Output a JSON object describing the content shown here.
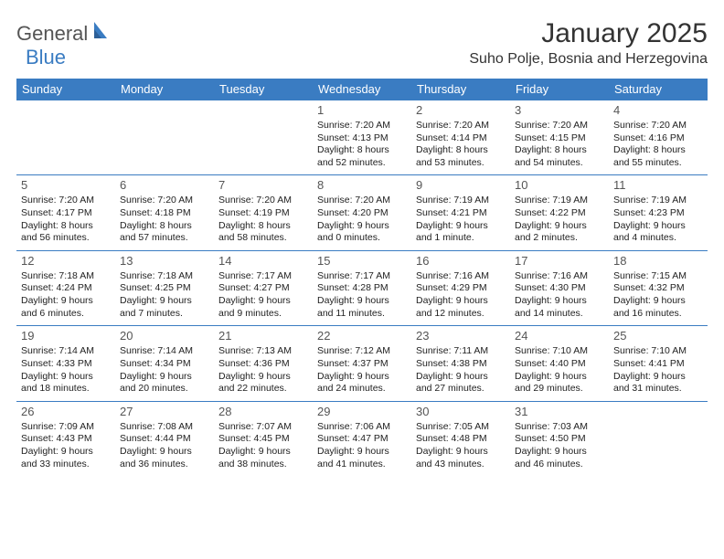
{
  "logo": {
    "part1": "General",
    "part2": "Blue"
  },
  "title": {
    "month": "January 2025",
    "location": "Suho Polje, Bosnia and Herzegovina"
  },
  "columns": [
    "Sunday",
    "Monday",
    "Tuesday",
    "Wednesday",
    "Thursday",
    "Friday",
    "Saturday"
  ],
  "colors": {
    "header_bg": "#3a7cc2",
    "header_fg": "#ffffff",
    "rule": "#3a7cc2",
    "text": "#222222",
    "daynum": "#555555",
    "logo_gray": "#555555",
    "logo_blue": "#3a7cc2",
    "background": "#ffffff"
  },
  "weeks": [
    [
      null,
      null,
      null,
      {
        "n": "1",
        "sr": "7:20 AM",
        "ss": "4:13 PM",
        "dl": "8 hours and 52 minutes."
      },
      {
        "n": "2",
        "sr": "7:20 AM",
        "ss": "4:14 PM",
        "dl": "8 hours and 53 minutes."
      },
      {
        "n": "3",
        "sr": "7:20 AM",
        "ss": "4:15 PM",
        "dl": "8 hours and 54 minutes."
      },
      {
        "n": "4",
        "sr": "7:20 AM",
        "ss": "4:16 PM",
        "dl": "8 hours and 55 minutes."
      }
    ],
    [
      {
        "n": "5",
        "sr": "7:20 AM",
        "ss": "4:17 PM",
        "dl": "8 hours and 56 minutes."
      },
      {
        "n": "6",
        "sr": "7:20 AM",
        "ss": "4:18 PM",
        "dl": "8 hours and 57 minutes."
      },
      {
        "n": "7",
        "sr": "7:20 AM",
        "ss": "4:19 PM",
        "dl": "8 hours and 58 minutes."
      },
      {
        "n": "8",
        "sr": "7:20 AM",
        "ss": "4:20 PM",
        "dl": "9 hours and 0 minutes."
      },
      {
        "n": "9",
        "sr": "7:19 AM",
        "ss": "4:21 PM",
        "dl": "9 hours and 1 minute."
      },
      {
        "n": "10",
        "sr": "7:19 AM",
        "ss": "4:22 PM",
        "dl": "9 hours and 2 minutes."
      },
      {
        "n": "11",
        "sr": "7:19 AM",
        "ss": "4:23 PM",
        "dl": "9 hours and 4 minutes."
      }
    ],
    [
      {
        "n": "12",
        "sr": "7:18 AM",
        "ss": "4:24 PM",
        "dl": "9 hours and 6 minutes."
      },
      {
        "n": "13",
        "sr": "7:18 AM",
        "ss": "4:25 PM",
        "dl": "9 hours and 7 minutes."
      },
      {
        "n": "14",
        "sr": "7:17 AM",
        "ss": "4:27 PM",
        "dl": "9 hours and 9 minutes."
      },
      {
        "n": "15",
        "sr": "7:17 AM",
        "ss": "4:28 PM",
        "dl": "9 hours and 11 minutes."
      },
      {
        "n": "16",
        "sr": "7:16 AM",
        "ss": "4:29 PM",
        "dl": "9 hours and 12 minutes."
      },
      {
        "n": "17",
        "sr": "7:16 AM",
        "ss": "4:30 PM",
        "dl": "9 hours and 14 minutes."
      },
      {
        "n": "18",
        "sr": "7:15 AM",
        "ss": "4:32 PM",
        "dl": "9 hours and 16 minutes."
      }
    ],
    [
      {
        "n": "19",
        "sr": "7:14 AM",
        "ss": "4:33 PM",
        "dl": "9 hours and 18 minutes."
      },
      {
        "n": "20",
        "sr": "7:14 AM",
        "ss": "4:34 PM",
        "dl": "9 hours and 20 minutes."
      },
      {
        "n": "21",
        "sr": "7:13 AM",
        "ss": "4:36 PM",
        "dl": "9 hours and 22 minutes."
      },
      {
        "n": "22",
        "sr": "7:12 AM",
        "ss": "4:37 PM",
        "dl": "9 hours and 24 minutes."
      },
      {
        "n": "23",
        "sr": "7:11 AM",
        "ss": "4:38 PM",
        "dl": "9 hours and 27 minutes."
      },
      {
        "n": "24",
        "sr": "7:10 AM",
        "ss": "4:40 PM",
        "dl": "9 hours and 29 minutes."
      },
      {
        "n": "25",
        "sr": "7:10 AM",
        "ss": "4:41 PM",
        "dl": "9 hours and 31 minutes."
      }
    ],
    [
      {
        "n": "26",
        "sr": "7:09 AM",
        "ss": "4:43 PM",
        "dl": "9 hours and 33 minutes."
      },
      {
        "n": "27",
        "sr": "7:08 AM",
        "ss": "4:44 PM",
        "dl": "9 hours and 36 minutes."
      },
      {
        "n": "28",
        "sr": "7:07 AM",
        "ss": "4:45 PM",
        "dl": "9 hours and 38 minutes."
      },
      {
        "n": "29",
        "sr": "7:06 AM",
        "ss": "4:47 PM",
        "dl": "9 hours and 41 minutes."
      },
      {
        "n": "30",
        "sr": "7:05 AM",
        "ss": "4:48 PM",
        "dl": "9 hours and 43 minutes."
      },
      {
        "n": "31",
        "sr": "7:03 AM",
        "ss": "4:50 PM",
        "dl": "9 hours and 46 minutes."
      },
      null
    ]
  ],
  "labels": {
    "sunrise": "Sunrise:",
    "sunset": "Sunset:",
    "daylight": "Daylight:"
  }
}
